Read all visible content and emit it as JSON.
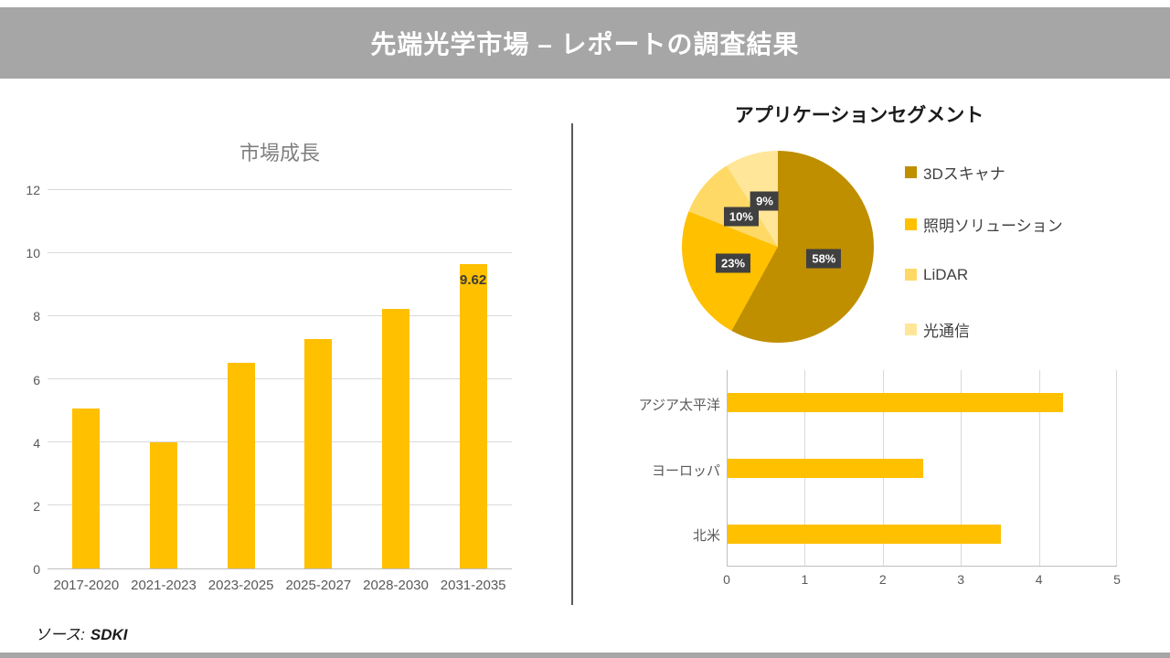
{
  "banner": {
    "title": "先端光学市場 – レポートの調査結果"
  },
  "source": {
    "label": "ソース:",
    "value": "SDKI"
  },
  "colors": {
    "banner_bg": "#A6A6A6",
    "bar": "#FFC000",
    "grid": "#D9D9D9",
    "axis": "#BFBFBF",
    "label_box": "#404040",
    "label_box_text": "#FFFFFF",
    "tick_text": "#595959",
    "title_gray": "#7F7F7F"
  },
  "chart_data": [
    {
      "type": "bar",
      "title": "市場成長",
      "categories": [
        "2017-2020",
        "2021-2023",
        "2023-2025",
        "2025-2027",
        "2028-2030",
        "2031-2035"
      ],
      "values": [
        5.07,
        4.0,
        6.5,
        7.27,
        8.2,
        9.62
      ],
      "ylim": [
        0,
        12
      ],
      "yticks": [
        0,
        2,
        4,
        6,
        8,
        10,
        12
      ],
      "bar_color": "#FFC000",
      "grid": true,
      "data_labels": [
        {
          "index": 5,
          "text": "9.62"
        }
      ]
    },
    {
      "type": "pie",
      "title": "アプリケーションセグメント",
      "labels": [
        "3Dスキャナ",
        "照明ソリューション",
        "LiDAR",
        "光通信"
      ],
      "values": [
        58,
        23,
        10,
        9
      ],
      "slice_labels": [
        "58%",
        "23%",
        "10%",
        "9%"
      ],
      "colors": [
        "#BF8F00",
        "#FFC000",
        "#FFD966",
        "#FFE699"
      ],
      "legend_position": "right"
    },
    {
      "type": "bar",
      "orientation": "horizontal",
      "categories": [
        "アジア太平洋",
        "ヨーロッパ",
        "北米"
      ],
      "values": [
        4.3,
        2.5,
        3.5
      ],
      "xlim": [
        0,
        5
      ],
      "xticks": [
        0,
        1,
        2,
        3,
        4,
        5
      ],
      "bar_color": "#FFC000",
      "grid": true
    }
  ]
}
